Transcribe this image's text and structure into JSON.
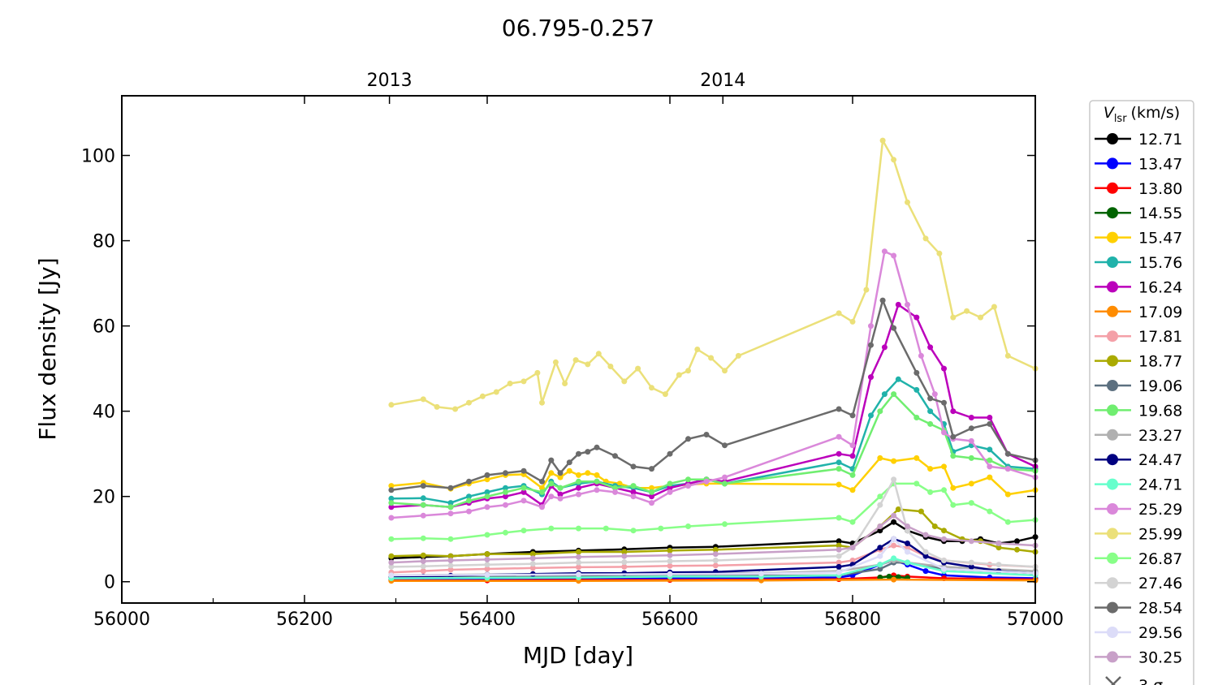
{
  "chart_data": {
    "type": "line",
    "title": "06.795-0.257",
    "xlabel": "MJD [day]",
    "ylabel": "Flux density [Jy]",
    "xlim": [
      56000,
      57000
    ],
    "ylim": [
      -5,
      114
    ],
    "xticks": [
      "56000",
      "56200",
      "56400",
      "56600",
      "56800",
      "57000"
    ],
    "yticks": [
      "0",
      "20",
      "40",
      "60",
      "80",
      "100"
    ],
    "top_axis_ticks": [
      {
        "label": "2013",
        "x": 56293
      },
      {
        "label": "2014",
        "x": 56658
      }
    ],
    "legend": {
      "title_main": "V",
      "title_sub": "lsr",
      "title_unit": "(km/s)",
      "position": "outside-right",
      "sigma_label": "3 σ"
    },
    "series": [
      {
        "name": "12.71",
        "color": "#000000",
        "x": [
          56295,
          56330,
          56360,
          56400,
          56450,
          56500,
          56550,
          56600,
          56650,
          56785,
          56800,
          56830,
          56845,
          56860,
          56880,
          56900,
          56920,
          56940,
          56960,
          56980,
          57000
        ],
        "y": [
          5.5,
          5.8,
          6.0,
          6.5,
          7.0,
          7.3,
          7.6,
          8.0,
          8.2,
          9.5,
          9.0,
          12.0,
          14.0,
          12.0,
          10.5,
          9.5,
          9.5,
          10.0,
          9.0,
          9.5,
          10.5
        ]
      },
      {
        "name": "13.47",
        "color": "#0000ff",
        "x": [
          56295,
          56400,
          56500,
          56600,
          56700,
          56785,
          56800,
          56830,
          56845,
          56860,
          56880,
          56900,
          56950,
          57000
        ],
        "y": [
          0.5,
          0.6,
          0.7,
          0.8,
          0.9,
          1.0,
          1.5,
          4.0,
          5.0,
          4.0,
          2.5,
          1.5,
          1.0,
          0.8
        ]
      },
      {
        "name": "13.80",
        "color": "#ff0000",
        "x": [
          56295,
          56400,
          56500,
          56600,
          56700,
          56785,
          56830,
          56845,
          56860,
          56900,
          57000
        ],
        "y": [
          0.3,
          0.3,
          0.4,
          0.4,
          0.5,
          0.6,
          1.0,
          1.5,
          1.2,
          0.8,
          0.5
        ]
      },
      {
        "name": "14.55",
        "color": "#006400",
        "x": [
          56830,
          56840,
          56850,
          56860
        ],
        "y": [
          1.0,
          1.2,
          1.1,
          0.9
        ]
      },
      {
        "name": "15.47",
        "color": "#ffd000",
        "x": [
          56295,
          56330,
          56360,
          56380,
          56400,
          56420,
          56440,
          56460,
          56470,
          56480,
          56490,
          56500,
          56510,
          56520,
          56530,
          56545,
          56560,
          56580,
          56600,
          56620,
          56640,
          56660,
          56785,
          56800,
          56830,
          56845,
          56870,
          56885,
          56900,
          56910,
          56930,
          56950,
          56970,
          57000
        ],
        "y": [
          22.5,
          23.2,
          21.8,
          23.0,
          24.0,
          25.0,
          25.2,
          22.0,
          25.5,
          24.5,
          26.0,
          25.0,
          25.5,
          25.0,
          23.5,
          23.0,
          22.0,
          22.0,
          22.5,
          22.8,
          23.0,
          23.0,
          22.8,
          21.5,
          29.0,
          28.3,
          29.0,
          26.5,
          27.0,
          22.0,
          23.0,
          24.5,
          20.5,
          21.5
        ]
      },
      {
        "name": "15.76",
        "color": "#20b2aa",
        "x": [
          56295,
          56330,
          56360,
          56380,
          56400,
          56420,
          56440,
          56460,
          56470,
          56480,
          56500,
          56520,
          56540,
          56560,
          56580,
          56600,
          56620,
          56640,
          56660,
          56785,
          56800,
          56820,
          56835,
          56850,
          56870,
          56885,
          56900,
          56910,
          56930,
          56950,
          56970,
          57000
        ],
        "y": [
          19.5,
          19.6,
          18.5,
          20.0,
          21.0,
          22.0,
          22.5,
          20.5,
          23.5,
          22.0,
          23.0,
          23.5,
          22.5,
          22.0,
          21.0,
          22.5,
          23.0,
          24.0,
          23.0,
          28.0,
          26.5,
          39.0,
          44.0,
          47.5,
          45.0,
          40.0,
          37.0,
          30.5,
          32.0,
          31.0,
          27.0,
          26.5
        ]
      },
      {
        "name": "16.24",
        "color": "#bb00bb",
        "x": [
          56295,
          56330,
          56360,
          56380,
          56400,
          56420,
          56440,
          56460,
          56470,
          56480,
          56500,
          56520,
          56540,
          56560,
          56580,
          56600,
          56620,
          56640,
          56660,
          56785,
          56800,
          56820,
          56835,
          56850,
          56870,
          56885,
          56900,
          56910,
          56930,
          56950,
          56970,
          57000
        ],
        "y": [
          17.5,
          18.0,
          17.5,
          18.5,
          19.5,
          20.0,
          21.0,
          18.0,
          22.5,
          20.5,
          22.0,
          23.0,
          22.0,
          21.0,
          20.0,
          22.0,
          23.0,
          24.0,
          23.5,
          30.0,
          29.5,
          48.0,
          55.0,
          65.0,
          62.0,
          55.0,
          50.0,
          40.0,
          38.5,
          38.5,
          30.0,
          27.0
        ]
      },
      {
        "name": "17.09",
        "color": "#ff8c00",
        "x": [
          56295,
          56500,
          56700,
          56845,
          57000
        ],
        "y": [
          0.2,
          0.2,
          0.3,
          0.5,
          0.3
        ]
      },
      {
        "name": "17.81",
        "color": "#f4a0a8",
        "x": [
          56295,
          56330,
          56360,
          56400,
          56450,
          56500,
          56550,
          56600,
          56650,
          56785,
          56800,
          56830,
          56845,
          56860,
          56880,
          56900,
          56950,
          57000
        ],
        "y": [
          2.2,
          2.5,
          2.8,
          3.0,
          3.2,
          3.4,
          3.5,
          3.7,
          3.8,
          4.5,
          5.0,
          7.5,
          8.5,
          8.0,
          6.0,
          5.0,
          4.0,
          3.5
        ]
      },
      {
        "name": "18.77",
        "color": "#aaaa00",
        "x": [
          56295,
          56330,
          56360,
          56400,
          56450,
          56500,
          56550,
          56600,
          56650,
          56785,
          56800,
          56830,
          56850,
          56875,
          56890,
          56900,
          56920,
          56940,
          56960,
          56980,
          57000
        ],
        "y": [
          6.0,
          6.2,
          6.0,
          6.5,
          6.5,
          7.0,
          7.0,
          7.3,
          7.5,
          8.5,
          8.0,
          13.0,
          17.0,
          16.5,
          13.0,
          12.0,
          10.0,
          9.5,
          8.0,
          7.5,
          7.0
        ]
      },
      {
        "name": "19.06",
        "color": "#5c7080",
        "x": [
          56295,
          56400,
          56500,
          56600,
          56700,
          56785,
          56830,
          56845,
          56860,
          56900,
          57000
        ],
        "y": [
          1.0,
          1.1,
          1.2,
          1.3,
          1.4,
          1.5,
          3.0,
          4.5,
          4.5,
          3.0,
          2.0
        ]
      },
      {
        "name": "19.68",
        "color": "#70ee70",
        "x": [
          56295,
          56330,
          56360,
          56380,
          56400,
          56420,
          56440,
          56460,
          56470,
          56480,
          56500,
          56520,
          56540,
          56560,
          56580,
          56600,
          56620,
          56640,
          56660,
          56785,
          56800,
          56830,
          56845,
          56870,
          56885,
          56900,
          56910,
          56930,
          56950,
          56970,
          57000
        ],
        "y": [
          18.5,
          18.0,
          17.5,
          19.0,
          20.0,
          21.0,
          22.0,
          21.0,
          23.0,
          22.0,
          23.5,
          23.5,
          22.0,
          22.5,
          21.0,
          23.0,
          24.0,
          24.0,
          23.0,
          26.5,
          25.0,
          40.0,
          44.0,
          38.5,
          37.0,
          35.5,
          29.5,
          29.0,
          28.5,
          26.5,
          26.0
        ]
      },
      {
        "name": "23.27",
        "color": "#b0b0b0",
        "x": [
          56295,
          56400,
          56500,
          56600,
          56700,
          56785,
          56830,
          56845,
          56860,
          56900,
          57000
        ],
        "y": [
          1.5,
          1.7,
          1.8,
          2.0,
          2.0,
          2.5,
          4.0,
          5.0,
          4.5,
          3.5,
          2.5
        ]
      },
      {
        "name": "24.47",
        "color": "#000080",
        "x": [
          56295,
          56330,
          56360,
          56400,
          56450,
          56500,
          56550,
          56600,
          56650,
          56785,
          56800,
          56830,
          56845,
          56860,
          56880,
          56900,
          56930,
          56960,
          57000
        ],
        "y": [
          1.0,
          1.2,
          1.4,
          1.6,
          1.8,
          2.0,
          2.0,
          2.2,
          2.3,
          3.5,
          4.0,
          8.0,
          10.0,
          9.0,
          6.0,
          4.5,
          3.5,
          2.5,
          2.0
        ]
      },
      {
        "name": "24.71",
        "color": "#66ffcc",
        "x": [
          56295,
          56400,
          56500,
          56600,
          56700,
          56785,
          56830,
          56845,
          56860,
          56900,
          57000
        ],
        "y": [
          0.8,
          0.9,
          1.0,
          1.2,
          1.2,
          1.5,
          4.0,
          5.5,
          4.5,
          2.5,
          1.5
        ]
      },
      {
        "name": "25.29",
        "color": "#da88da",
        "x": [
          56295,
          56330,
          56360,
          56380,
          56400,
          56420,
          56440,
          56460,
          56470,
          56480,
          56500,
          56520,
          56540,
          56560,
          56580,
          56600,
          56620,
          56640,
          56660,
          56785,
          56800,
          56820,
          56835,
          56845,
          56860,
          56875,
          56890,
          56900,
          56910,
          56930,
          56950,
          56970,
          57000
        ],
        "y": [
          15.0,
          15.5,
          16.0,
          16.5,
          17.5,
          18.0,
          19.0,
          17.5,
          20.0,
          19.5,
          20.5,
          21.5,
          21.0,
          20.0,
          18.5,
          21.0,
          22.5,
          23.5,
          24.5,
          34.0,
          32.0,
          60.0,
          77.5,
          76.5,
          65.0,
          53.0,
          44.0,
          35.0,
          33.5,
          33.0,
          27.0,
          26.5,
          24.5
        ]
      },
      {
        "name": "25.99",
        "color": "#ebe079",
        "x": [
          56295,
          56330,
          56345,
          56365,
          56380,
          56395,
          56410,
          56425,
          56440,
          56455,
          56460,
          56475,
          56485,
          56497,
          56510,
          56522,
          56535,
          56550,
          56565,
          56580,
          56595,
          56610,
          56620,
          56630,
          56645,
          56660,
          56675,
          56785,
          56800,
          56815,
          56833,
          56845,
          56860,
          56880,
          56895,
          56910,
          56925,
          56940,
          56955,
          56970,
          57000
        ],
        "y": [
          41.5,
          42.8,
          41.0,
          40.5,
          42.0,
          43.5,
          44.5,
          46.5,
          47.0,
          49.0,
          42.0,
          51.5,
          46.5,
          52.0,
          51.0,
          53.5,
          50.5,
          47.0,
          50.0,
          45.5,
          44.0,
          48.5,
          49.5,
          54.5,
          52.5,
          49.5,
          53.0,
          63.0,
          61.0,
          68.5,
          103.5,
          99.0,
          89.0,
          80.5,
          77.0,
          62.0,
          63.5,
          62.0,
          64.5,
          53.0,
          50.0
        ]
      },
      {
        "name": "26.87",
        "color": "#88ff88",
        "x": [
          56295,
          56330,
          56360,
          56400,
          56420,
          56440,
          56470,
          56500,
          56530,
          56560,
          56590,
          56620,
          56660,
          56785,
          56800,
          56830,
          56845,
          56870,
          56885,
          56900,
          56910,
          56930,
          56950,
          56970,
          57000
        ],
        "y": [
          10.0,
          10.2,
          10.0,
          11.0,
          11.5,
          12.0,
          12.5,
          12.5,
          12.5,
          12.0,
          12.5,
          13.0,
          13.5,
          15.0,
          14.0,
          20.0,
          23.0,
          23.0,
          21.0,
          21.5,
          18.0,
          18.5,
          16.5,
          14.0,
          14.5
        ]
      },
      {
        "name": "27.46",
        "color": "#d3d3d3",
        "x": [
          56295,
          56330,
          56360,
          56400,
          56450,
          56500,
          56550,
          56600,
          56650,
          56785,
          56800,
          56830,
          56845,
          56860,
          56880,
          56900,
          56930,
          56960,
          57000
        ],
        "y": [
          3.5,
          3.6,
          3.8,
          4.0,
          4.2,
          4.5,
          4.6,
          4.8,
          5.0,
          6.0,
          8.0,
          18.0,
          24.0,
          12.0,
          7.0,
          5.0,
          4.5,
          4.0,
          3.5
        ]
      },
      {
        "name": "28.54",
        "color": "#6b6b6b",
        "x": [
          56295,
          56330,
          56360,
          56380,
          56400,
          56420,
          56440,
          56460,
          56470,
          56480,
          56490,
          56500,
          56510,
          56520,
          56540,
          56560,
          56580,
          56600,
          56620,
          56640,
          56660,
          56785,
          56800,
          56820,
          56833,
          56845,
          56870,
          56885,
          56900,
          56910,
          56930,
          56950,
          56970,
          57000
        ],
        "y": [
          21.5,
          22.5,
          22.0,
          23.5,
          25.0,
          25.5,
          26.0,
          23.5,
          28.5,
          25.5,
          28.0,
          30.0,
          30.5,
          31.5,
          29.5,
          27.0,
          26.5,
          30.0,
          33.5,
          34.5,
          32.0,
          40.5,
          39.0,
          55.5,
          66.0,
          59.5,
          49.0,
          43.0,
          42.0,
          34.0,
          36.0,
          37.0,
          30.0,
          28.5
        ]
      },
      {
        "name": "29.56",
        "color": "#dcdcf8",
        "x": [
          56295,
          56400,
          56500,
          56600,
          56700,
          56785,
          56830,
          56845,
          56860,
          56900,
          57000
        ],
        "y": [
          1.5,
          1.6,
          1.7,
          1.8,
          1.9,
          2.2,
          6.0,
          10.0,
          7.0,
          3.0,
          2.0
        ]
      },
      {
        "name": "30.25",
        "color": "#c8a0c8",
        "x": [
          56295,
          56330,
          56360,
          56400,
          56450,
          56500,
          56550,
          56600,
          56650,
          56785,
          56800,
          56830,
          56845,
          56860,
          56880,
          56900,
          56930,
          56960,
          57000
        ],
        "y": [
          4.5,
          4.8,
          5.0,
          5.2,
          5.5,
          5.8,
          6.0,
          6.2,
          6.5,
          7.5,
          8.0,
          13.0,
          15.5,
          13.0,
          11.0,
          10.0,
          9.5,
          9.0,
          8.5
        ]
      }
    ]
  }
}
